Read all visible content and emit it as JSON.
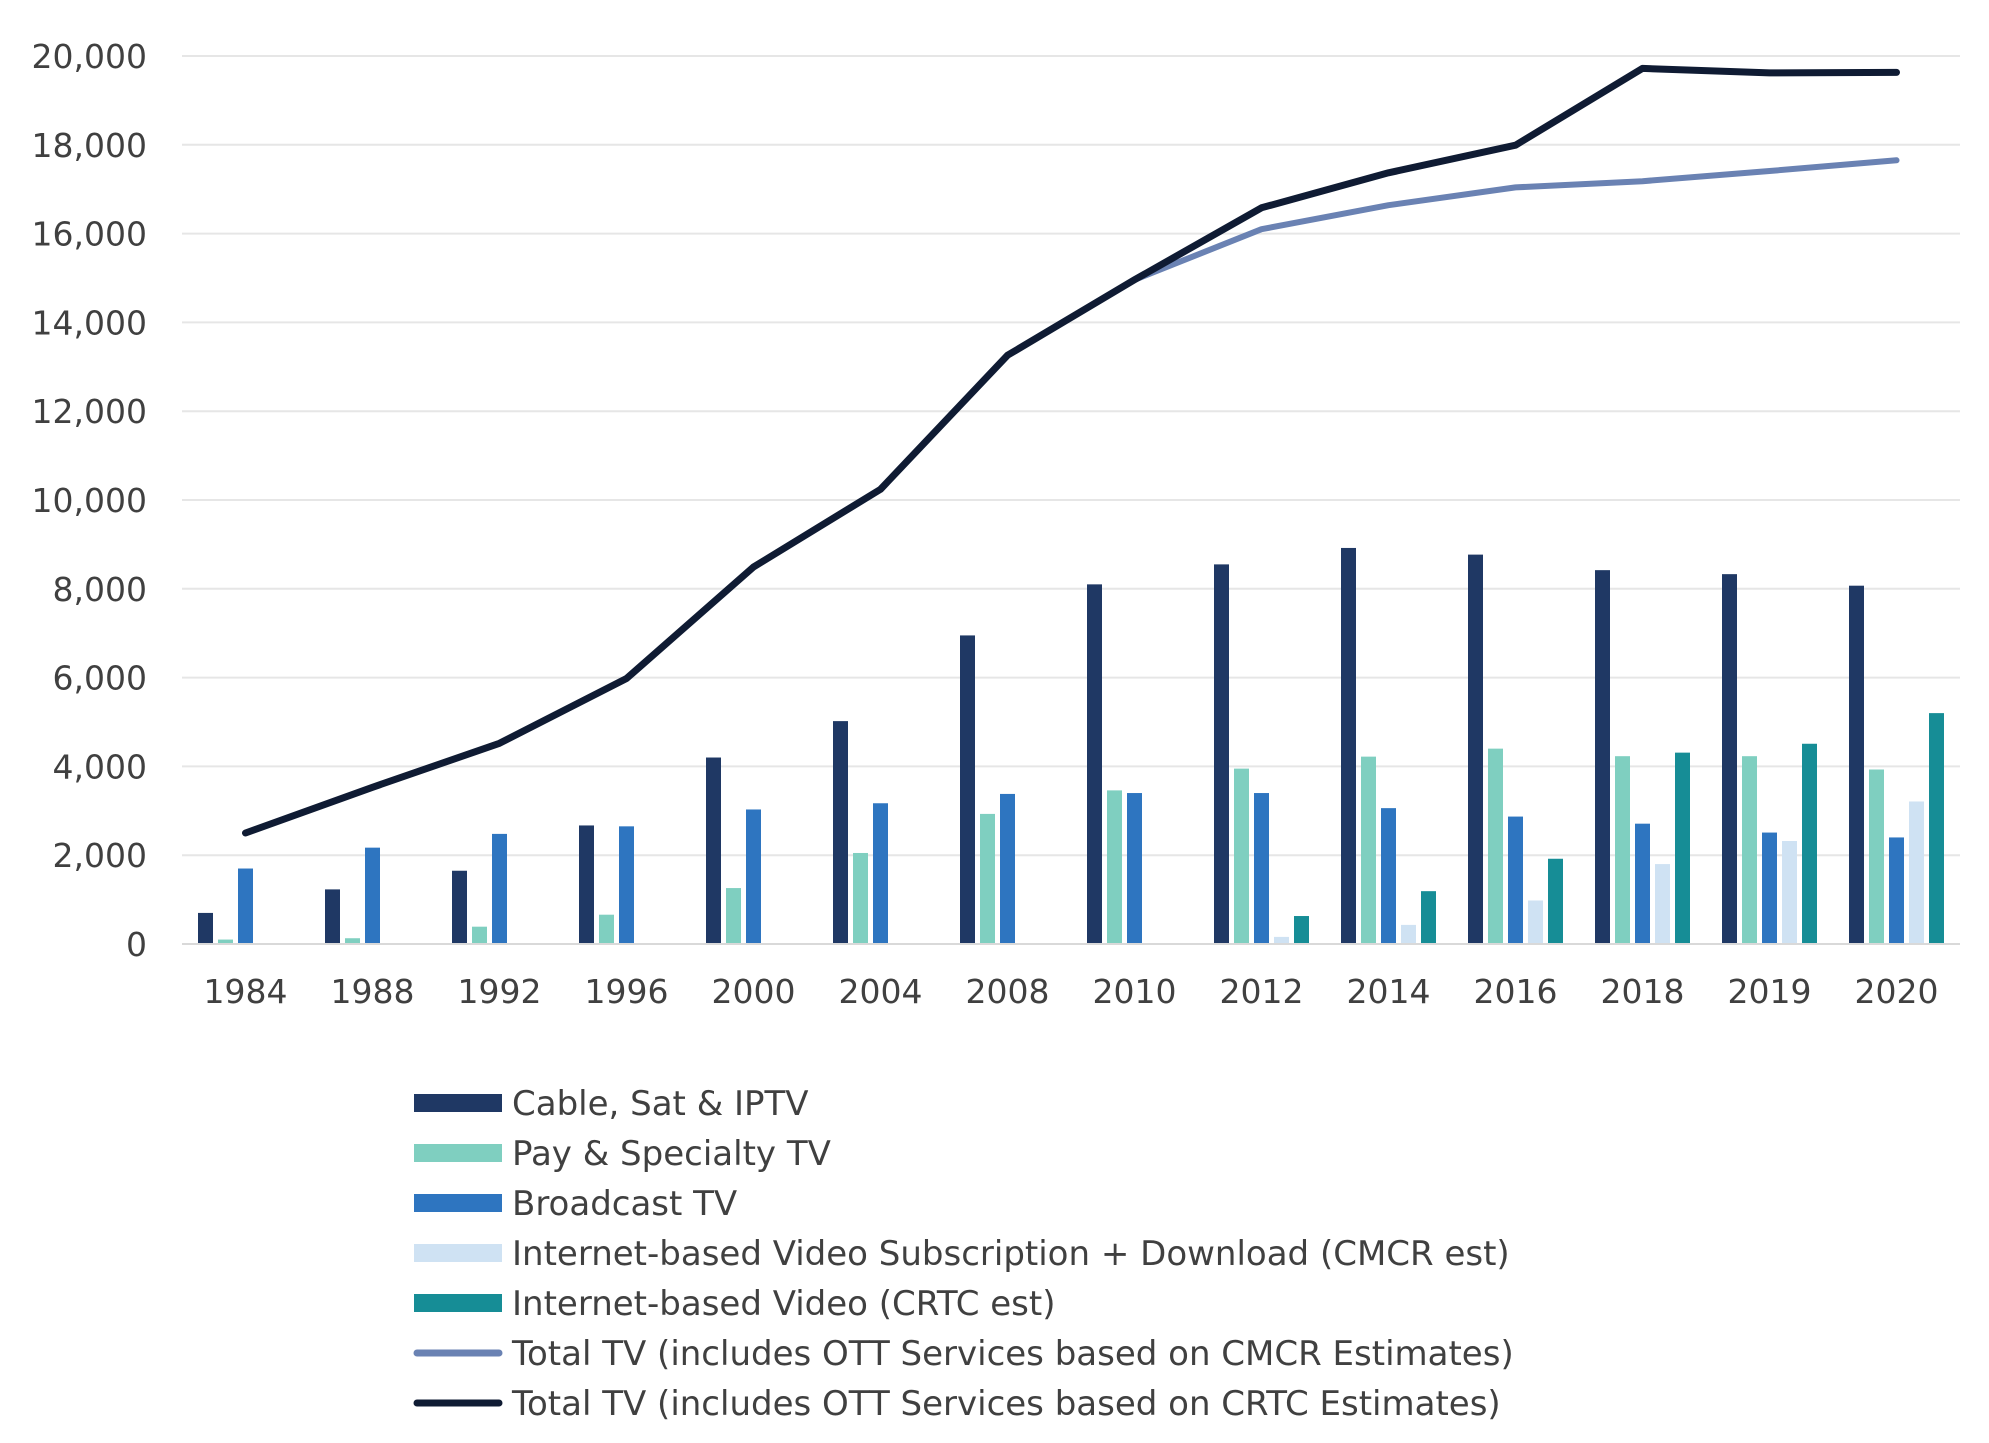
{
  "chart_data": {
    "type": "bar",
    "title": "",
    "xlabel": "",
    "ylabel": "",
    "ylim": [
      0,
      20000
    ],
    "yticks": [
      0,
      2000,
      4000,
      6000,
      8000,
      10000,
      12000,
      14000,
      16000,
      18000,
      20000
    ],
    "ytick_labels": [
      "0",
      "2,000",
      "4,000",
      "6,000",
      "8,000",
      "10,000",
      "12,000",
      "14,000",
      "16,000",
      "18,000",
      "20,000"
    ],
    "grid": "horizontal",
    "legend_position": "bottom",
    "categories": [
      "1984",
      "1988",
      "1992",
      "1996",
      "2000",
      "2004",
      "2008",
      "2010",
      "2012",
      "2014",
      "2016",
      "2018",
      "2019",
      "2020"
    ],
    "series": [
      {
        "name": "Cable, Sat & IPTV",
        "kind": "bar",
        "color": "#1f3864",
        "values": [
          700,
          1230,
          1650,
          2670,
          4200,
          5020,
          6950,
          8100,
          8550,
          8920,
          8770,
          8420,
          8330,
          8070
        ]
      },
      {
        "name": "Pay & Specialty TV",
        "kind": "bar",
        "color": "#7fcfc0",
        "values": [
          100,
          130,
          390,
          660,
          1260,
          2050,
          2930,
          3460,
          3950,
          4220,
          4400,
          4230,
          4230,
          3930
        ]
      },
      {
        "name": "Broadcast TV",
        "kind": "bar",
        "color": "#2e75c0",
        "values": [
          1700,
          2170,
          2480,
          2650,
          3030,
          3170,
          3380,
          3400,
          3400,
          3060,
          2870,
          2710,
          2510,
          2400
        ]
      },
      {
        "name": "Internet-based Video Subscription + Download (CMCR est)",
        "kind": "bar",
        "color": "#cfe2f3",
        "values": [
          null,
          null,
          null,
          null,
          null,
          null,
          null,
          null,
          160,
          430,
          980,
          1800,
          2320,
          3210
        ]
      },
      {
        "name": "Internet-based Video (CRTC est)",
        "kind": "bar",
        "color": "#168d96",
        "values": [
          null,
          null,
          null,
          null,
          null,
          null,
          null,
          null,
          630,
          1190,
          1920,
          4310,
          4510,
          5200
        ]
      },
      {
        "name": "Total TV (includes OTT Services based on CMCR Estimates)",
        "kind": "line",
        "color": "#6a82b3",
        "values": [
          2500,
          3530,
          4520,
          5980,
          8490,
          10240,
          13260,
          14960,
          16100,
          16640,
          17040,
          17180,
          17410,
          17650
        ]
      },
      {
        "name": "Total TV (includes OTT Services based on CRTC Estimates)",
        "kind": "line",
        "color": "#0f1b33",
        "values": [
          2500,
          3530,
          4520,
          5980,
          8490,
          10240,
          13260,
          14960,
          16580,
          17370,
          17990,
          19720,
          19620,
          19630
        ]
      }
    ]
  }
}
